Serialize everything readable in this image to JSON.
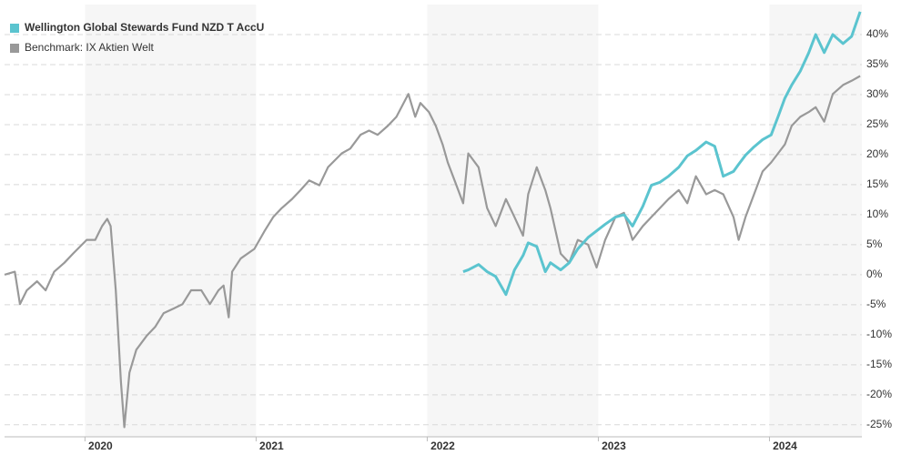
{
  "chart_data": {
    "type": "line",
    "x": [
      2019.53,
      2019.59,
      2019.62,
      2019.66,
      2019.72,
      2019.77,
      2019.82,
      2019.88,
      2019.93,
      2020.01,
      2020.06,
      2020.1,
      2020.13,
      2020.15,
      2020.18,
      2020.21,
      2020.23,
      2020.26,
      2020.3,
      2020.36,
      2020.41,
      2020.46,
      2020.52,
      2020.57,
      2020.62,
      2020.68,
      2020.73,
      2020.78,
      2020.81,
      2020.84,
      2020.86,
      2020.91,
      2020.99,
      2021.05,
      2021.1,
      2021.15,
      2021.21,
      2021.26,
      2021.31,
      2021.37,
      2021.42,
      2021.5,
      2021.55,
      2021.61,
      2021.66,
      2021.71,
      2021.77,
      2021.82,
      2021.89,
      2021.93,
      2021.96,
      2022.01,
      2022.05,
      2022.09,
      2022.12,
      2022.16,
      2022.21,
      2022.24,
      2022.3,
      2022.35,
      2022.4,
      2022.46,
      2022.51,
      2022.56,
      2022.59,
      2022.64,
      2022.69,
      2022.72,
      2022.78,
      2022.83,
      2022.88,
      2022.94,
      2022.99,
      2023.04,
      2023.1,
      2023.15,
      2023.2,
      2023.26,
      2023.31,
      2023.36,
      2023.41,
      2023.47,
      2023.52,
      2023.57,
      2023.63,
      2023.68,
      2023.73,
      2023.79,
      2023.82,
      2023.86,
      2023.91,
      2023.96,
      2024.01,
      2024.05,
      2024.09,
      2024.13,
      2024.18,
      2024.23,
      2024.27,
      2024.32,
      2024.37,
      2024.43,
      2024.48,
      2024.53
    ],
    "series": [
      {
        "name": "Wellington Global Stewards Fund NZD T AccU",
        "color": "#5bc4cf",
        "values": [
          null,
          null,
          null,
          null,
          null,
          null,
          null,
          null,
          null,
          null,
          null,
          null,
          null,
          null,
          null,
          null,
          null,
          null,
          null,
          null,
          null,
          null,
          null,
          null,
          null,
          null,
          null,
          null,
          null,
          null,
          null,
          null,
          null,
          null,
          null,
          null,
          null,
          null,
          null,
          null,
          null,
          null,
          null,
          null,
          null,
          null,
          null,
          null,
          null,
          null,
          null,
          null,
          null,
          null,
          null,
          null,
          0.5,
          0.8,
          1.7,
          0.5,
          -0.3,
          -3.3,
          0.8,
          3.2,
          5.3,
          4.7,
          0.5,
          2.0,
          0.8,
          2.0,
          4.3,
          6.2,
          7.3,
          8.4,
          9.6,
          10.0,
          8.1,
          11.4,
          14.9,
          15.4,
          16.4,
          17.9,
          19.8,
          20.7,
          22.1,
          21.4,
          16.4,
          17.2,
          18.4,
          19.9,
          21.3,
          22.5,
          23.3,
          26.3,
          29.4,
          31.6,
          33.9,
          37.0,
          40.0,
          37.0,
          40.0,
          38.5,
          39.7,
          43.8
        ]
      },
      {
        "name": "Benchmark: IX Aktien Welt",
        "color": "#999999",
        "values": [
          0,
          0.5,
          -4.9,
          -2.6,
          -1.1,
          -2.6,
          0.5,
          2.0,
          3.5,
          5.8,
          5.8,
          8.1,
          9.3,
          8.1,
          -2.6,
          -17.8,
          -25.4,
          -16.3,
          -12.5,
          -10.2,
          -8.7,
          -6.4,
          -5.6,
          -4.9,
          -2.6,
          -2.6,
          -4.9,
          -2.6,
          -1.8,
          -7.1,
          0.5,
          2.7,
          4.3,
          7.3,
          9.6,
          11.1,
          12.6,
          14.1,
          15.7,
          14.9,
          17.9,
          20.2,
          21.0,
          23.3,
          24.0,
          23.3,
          24.8,
          26.3,
          30.1,
          26.3,
          28.6,
          27.1,
          24.8,
          21.7,
          18.7,
          15.7,
          11.9,
          20.2,
          17.9,
          11.1,
          8.1,
          12.6,
          9.6,
          6.5,
          13.4,
          17.9,
          14.1,
          11.1,
          3.5,
          2.0,
          5.8,
          5.0,
          1.2,
          5.8,
          9.6,
          10.3,
          5.8,
          8.1,
          9.6,
          11.1,
          12.6,
          14.1,
          11.9,
          16.4,
          13.4,
          14.1,
          13.4,
          9.6,
          5.8,
          9.6,
          13.4,
          17.2,
          18.7,
          20.2,
          21.7,
          24.8,
          26.3,
          27.1,
          27.9,
          25.5,
          30.1,
          31.6,
          32.3,
          33.1
        ]
      }
    ],
    "xlim": [
      2019.53,
      2024.54
    ],
    "xticks": [
      2020,
      2021,
      2022,
      2023,
      2024
    ],
    "ylim": [
      -27,
      45
    ],
    "yticks": [
      {
        "value": -25,
        "label": "-25%"
      },
      {
        "value": -20,
        "label": "-20%"
      },
      {
        "value": -15,
        "label": "-15%"
      },
      {
        "value": -10,
        "label": "-10%"
      },
      {
        "value": -5,
        "label": "-5%"
      },
      {
        "value": 0,
        "label": "0%"
      },
      {
        "value": 5,
        "label": "5%"
      },
      {
        "value": 10,
        "label": "10%"
      },
      {
        "value": 15,
        "label": "15%"
      },
      {
        "value": 20,
        "label": "20%"
      },
      {
        "value": 25,
        "label": "25%"
      },
      {
        "value": 30,
        "label": "30%"
      },
      {
        "value": 35,
        "label": "35%"
      },
      {
        "value": 40,
        "label": "40%"
      }
    ],
    "grid": true,
    "legend": "top-left"
  }
}
